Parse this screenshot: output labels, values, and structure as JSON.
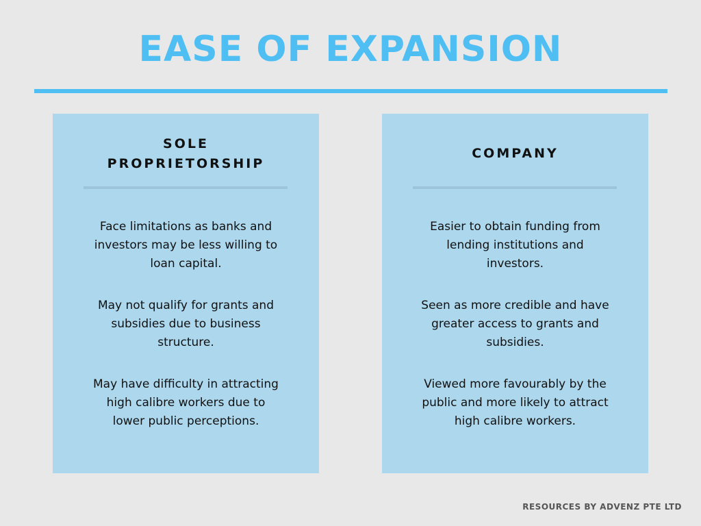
{
  "colors": {
    "background": "#e8e8e8",
    "title": "#4fbef3",
    "title_rule": "#4fbef3",
    "card_background": "#acd7ed",
    "card_rule": "#9cc4da",
    "text": "#111111",
    "footer": "#555555"
  },
  "title": "EASE OF EXPANSION",
  "left_card": {
    "heading": "SOLE\nPROPRIETORSHIP",
    "points": [
      "Face limitations as banks and investors may be less willing to loan capital.",
      "May not qualify for grants and subsidies due to business structure.",
      "May have difficulty in attracting high calibre workers due to lower public perceptions."
    ]
  },
  "right_card": {
    "heading": "COMPANY",
    "points": [
      "Easier to obtain funding from lending institutions and investors.",
      "Seen as more credible and have greater access to grants and subsidies.",
      "Viewed more favourably by the public and more likely to attract high calibre workers."
    ]
  },
  "footer": "RESOURCES BY ADVENZ PTE LTD"
}
